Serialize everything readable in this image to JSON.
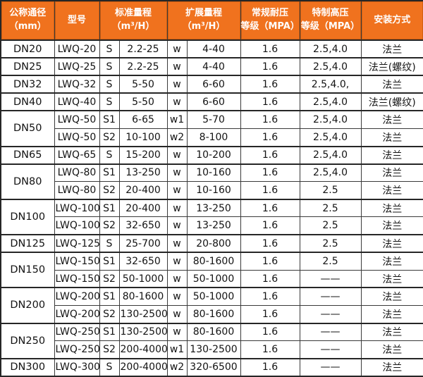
{
  "accent_color": "#f0721e",
  "border_color": "#262626",
  "table": {
    "headers": [
      {
        "line1": "公称通径",
        "line2": "（mm）"
      },
      {
        "line1": "型号",
        "line2": ""
      },
      {
        "line1": "标准量程",
        "line2": "（m³/H）"
      },
      {
        "line1": "扩展量程",
        "line2": "（m³/H）"
      },
      {
        "line1": "常规耐压",
        "line2": "等级（MPA）"
      },
      {
        "line1": "特制高压",
        "line2": "等级（MPA）"
      },
      {
        "line1": "安装方式",
        "line2": ""
      }
    ],
    "columns": [
      "model",
      "standard-range-code",
      "standard-range-value",
      "extended-range-code",
      "extended-range-value",
      "standard-pressure-rating",
      "high-pressure-rating",
      "installation-type"
    ],
    "groups": [
      {
        "dn": "DN20",
        "rows": [
          [
            "LWQ-20",
            "S",
            "2.2-25",
            "w",
            "4-40",
            "1.6",
            "2.5,4.0",
            "法兰"
          ]
        ]
      },
      {
        "dn": "DN25",
        "rows": [
          [
            "LWQ-25",
            "S",
            "2.2-25",
            "w",
            "4-40",
            "1.6",
            "2.5,4.0",
            "法兰(螺纹)"
          ]
        ]
      },
      {
        "dn": "DN32",
        "rows": [
          [
            "LWQ-32",
            "S",
            "5-50",
            "w",
            "6-60",
            "1.6",
            "2.5,4.0,",
            "法兰"
          ]
        ]
      },
      {
        "dn": "DN40",
        "rows": [
          [
            "LWQ-40",
            "S",
            "5-50",
            "w",
            "6-60",
            "1.6",
            "2.5,4.0",
            "法兰(螺纹)"
          ]
        ]
      },
      {
        "dn": "DN50",
        "rows": [
          [
            "LWQ-50",
            "S1",
            "6-65",
            "w1",
            "5-70",
            "1.6",
            "2.5,4.0",
            "法兰"
          ],
          [
            "LWQ-50",
            "S2",
            "10-100",
            "w2",
            "8-100",
            "1.6",
            "2.5,4.0",
            "法兰"
          ]
        ]
      },
      {
        "dn": "DN65",
        "rows": [
          [
            "LWQ-65",
            "S",
            "15-200",
            "w",
            "10-200",
            "1.6",
            "2.5,4.0",
            "法兰"
          ]
        ]
      },
      {
        "dn": "DN80",
        "rows": [
          [
            "LWQ-80",
            "S1",
            "13-250",
            "w",
            "10-160",
            "1.6",
            "2.5,4.0",
            "法兰"
          ],
          [
            "LWQ-80",
            "S2",
            "20-400",
            "w",
            "10-160",
            "1.6",
            "2.5",
            "法兰"
          ]
        ]
      },
      {
        "dn": "DN100",
        "rows": [
          [
            "LWQ-100",
            "S1",
            "20-400",
            "w",
            "13-250",
            "1.6",
            "2.5",
            "法兰"
          ],
          [
            "LWQ-100",
            "S2",
            "32-650",
            "w",
            "13-250",
            "1.6",
            "2.5",
            "法兰"
          ]
        ]
      },
      {
        "dn": "DN125",
        "rows": [
          [
            "LWQ-125",
            "S",
            "25-700",
            "w",
            "20-800",
            "1.6",
            "2.5",
            "法兰"
          ]
        ]
      },
      {
        "dn": "DN150",
        "rows": [
          [
            "LWQ-150",
            "S1",
            "32-650",
            "w",
            "80-1600",
            "1.6",
            "2.5",
            "法兰"
          ],
          [
            "LWQ-150",
            "S2",
            "50-1000",
            "w",
            "50-1000",
            "1.6",
            "——",
            "法兰"
          ]
        ]
      },
      {
        "dn": "DN200",
        "rows": [
          [
            "LWQ-200",
            "S1",
            "80-1600",
            "w",
            "50-1000",
            "1.6",
            "——",
            "法兰"
          ],
          [
            "LWQ-200",
            "S2",
            "130-2500",
            "w",
            "80-1600",
            "1.6",
            "——",
            "法兰"
          ]
        ]
      },
      {
        "dn": "DN250",
        "rows": [
          [
            "LWQ-250",
            "S1",
            "130-2500",
            "w",
            "80-1600",
            "1.6",
            "——",
            "法兰"
          ],
          [
            "LWQ-250",
            "S2",
            "200-4000",
            "w1",
            "130-2500",
            "1.6",
            "——",
            "法兰"
          ]
        ]
      },
      {
        "dn": "DN300",
        "rows": [
          [
            "LWQ-300",
            "S",
            "200-4000",
            "w2",
            "320-6500",
            "1.6",
            "——",
            "法兰"
          ]
        ]
      }
    ]
  }
}
